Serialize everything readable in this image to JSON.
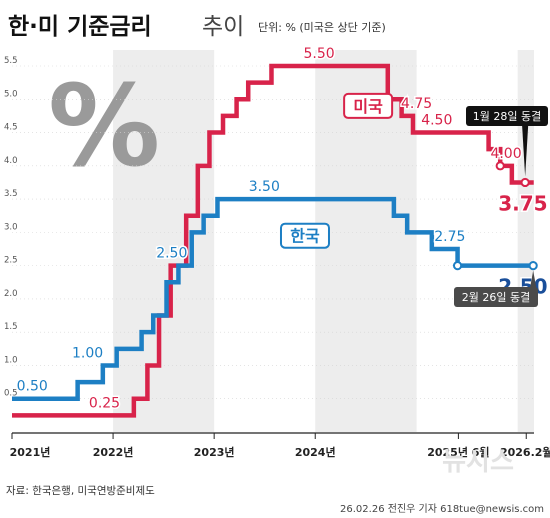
{
  "header": {
    "title_bold": "한·미 기준금리",
    "title_light": "추이",
    "unit_note": "단위: % (미국은 상단 기준)"
  },
  "decoration": {
    "percent_glyph": "%"
  },
  "footer": {
    "source": "자료: 한국은행, 미국연방준비제도",
    "credit": "26.02.26 전진우 기자 618tue@newsis.com",
    "watermark": "뉴시스"
  },
  "colors": {
    "us": "#d8234a",
    "korea": "#1d7fc4",
    "korea_dark": "#1a4f9a",
    "band_shade": "#ededed",
    "freeze_callout": "#4a4a4a",
    "hollow_marker_fill": "#ffffff"
  },
  "chart_data": {
    "type": "line",
    "line_shape": "step",
    "x_axis": {
      "ticks": [
        "2021년",
        "2022년",
        "2023년",
        "2024년",
        "2025년 6월",
        "2026.2월"
      ],
      "range": [
        "2021-01",
        "2026-03"
      ]
    },
    "y_axis": {
      "ticks": [
        "0.5",
        "1.0",
        "1.5",
        "2.0",
        "2.5",
        "3.0",
        "3.5",
        "4.0",
        "4.5",
        "5.0",
        "5.5"
      ],
      "range": [
        0,
        5.5
      ]
    },
    "series": [
      {
        "name": "미국",
        "color_key": "us",
        "points": [
          {
            "x": "2021-01-01",
            "y": 0.25
          },
          {
            "x": "2022-03-17",
            "y": 0.5
          },
          {
            "x": "2022-05-05",
            "y": 1.0
          },
          {
            "x": "2022-06-16",
            "y": 1.75
          },
          {
            "x": "2022-07-28",
            "y": 2.5
          },
          {
            "x": "2022-09-22",
            "y": 3.25
          },
          {
            "x": "2022-11-03",
            "y": 4.0
          },
          {
            "x": "2022-12-15",
            "y": 4.5
          },
          {
            "x": "2023-02-02",
            "y": 4.75
          },
          {
            "x": "2023-03-23",
            "y": 5.0
          },
          {
            "x": "2023-05-04",
            "y": 5.25
          },
          {
            "x": "2023-07-27",
            "y": 5.5
          },
          {
            "x": "2024-09-19",
            "y": 5.0
          },
          {
            "x": "2024-11-08",
            "y": 4.75
          },
          {
            "x": "2024-12-19",
            "y": 4.5
          },
          {
            "x": "2025-09-18",
            "y": 4.25
          },
          {
            "x": "2025-10-30",
            "y": 4.0
          },
          {
            "x": "2025-12-11",
            "y": 3.75
          },
          {
            "x": "2026-02-28",
            "y": 3.75
          }
        ],
        "annotations": [
          {
            "label": "0.25",
            "x": "2021-12-01",
            "y": 0.25
          },
          {
            "label": "5.50",
            "x": "2024-01-15",
            "y": 5.5
          },
          {
            "label": "4.75",
            "x": "2025-01-01",
            "y": 4.75
          },
          {
            "label": "4.50",
            "x": "2025-03-15",
            "y": 4.5
          },
          {
            "label": "4.00",
            "x": "2025-11-20",
            "y": 4.0
          },
          {
            "label": "3.75",
            "x": "2026-01-20",
            "y": 3.75
          }
        ],
        "hollow_markers": [
          {
            "x": "2025-10-30",
            "y": 4.0
          },
          {
            "x": "2026-01-28",
            "y": 3.75
          }
        ],
        "callouts": [
          {
            "text": "1월 28일 동결",
            "x": "2026-01-28",
            "y": 3.75
          }
        ]
      },
      {
        "name": "한국",
        "color_key": "korea",
        "points": [
          {
            "x": "2021-01-01",
            "y": 0.5
          },
          {
            "x": "2021-08-26",
            "y": 0.75
          },
          {
            "x": "2021-11-25",
            "y": 1.0
          },
          {
            "x": "2022-01-14",
            "y": 1.25
          },
          {
            "x": "2022-04-14",
            "y": 1.5
          },
          {
            "x": "2022-05-26",
            "y": 1.75
          },
          {
            "x": "2022-07-13",
            "y": 2.25
          },
          {
            "x": "2022-08-25",
            "y": 2.5
          },
          {
            "x": "2022-10-12",
            "y": 3.0
          },
          {
            "x": "2022-11-24",
            "y": 3.25
          },
          {
            "x": "2023-01-13",
            "y": 3.5
          },
          {
            "x": "2024-10-11",
            "y": 3.25
          },
          {
            "x": "2024-11-28",
            "y": 3.0
          },
          {
            "x": "2025-02-25",
            "y": 2.75
          },
          {
            "x": "2025-05-29",
            "y": 2.5
          },
          {
            "x": "2026-02-28",
            "y": 2.5
          }
        ],
        "annotations": [
          {
            "label": "0.50",
            "x": "2021-03-15",
            "y": 0.5
          },
          {
            "label": "1.00",
            "x": "2021-10-01",
            "y": 1.0
          },
          {
            "label": "2.50",
            "x": "2022-08-01",
            "y": 2.5
          },
          {
            "label": "3.50",
            "x": "2023-07-01",
            "y": 3.5
          },
          {
            "label": "2.75",
            "x": "2025-05-01",
            "y": 2.75
          },
          {
            "label": "2.50",
            "x": "2026-01-20",
            "y": 2.5
          }
        ],
        "hollow_markers": [
          {
            "x": "2025-05-29",
            "y": 2.5
          },
          {
            "x": "2026-02-26",
            "y": 2.5
          }
        ],
        "callouts": [
          {
            "text": "2월 26일 동결",
            "x": "2026-02-26",
            "y": 2.5
          }
        ]
      }
    ],
    "grid": false,
    "legend": "inline labels"
  }
}
